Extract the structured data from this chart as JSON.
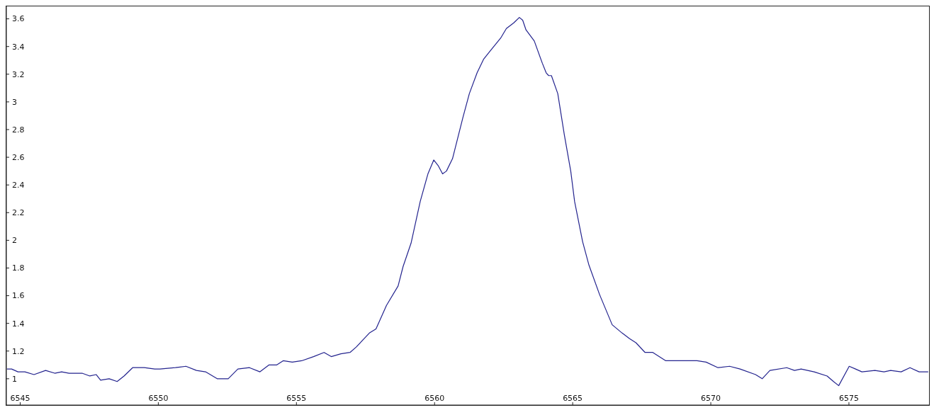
{
  "chart_data": {
    "type": "line",
    "xlim": [
      6544.5,
      6577.9
    ],
    "xticks": [
      6545,
      6550,
      6555,
      6560,
      6565,
      6570,
      6575
    ],
    "ylim": [
      0.81,
      3.69
    ],
    "yticks": [
      1,
      1.2,
      1.4,
      1.6,
      1.8,
      2,
      2.2,
      2.4,
      2.6,
      2.8,
      3,
      3.2,
      3.4,
      3.6
    ],
    "grid": false,
    "legend": false,
    "marker": "none",
    "line_style": "solid",
    "series": [
      {
        "color": "#23238e",
        "x": [
          6544.52,
          6544.69,
          6544.92,
          6545.17,
          6545.5,
          6545.92,
          6546.25,
          6546.5,
          6546.77,
          6547.24,
          6547.52,
          6547.75,
          6547.91,
          6548.22,
          6548.51,
          6548.76,
          6549.07,
          6549.49,
          6549.87,
          6550.06,
          6550.62,
          6551.0,
          6551.38,
          6551.71,
          6552.13,
          6552.53,
          6552.88,
          6553.3,
          6553.68,
          6554.01,
          6554.29,
          6554.52,
          6554.85,
          6555.19,
          6555.62,
          6556.0,
          6556.26,
          6556.61,
          6556.94,
          6557.17,
          6557.64,
          6557.88,
          6558.26,
          6558.68,
          6558.86,
          6559.15,
          6559.48,
          6559.76,
          6559.97,
          6560.13,
          6560.29,
          6560.43,
          6560.65,
          6561.03,
          6561.26,
          6561.54,
          6561.78,
          6562.02,
          6562.39,
          6562.6,
          6562.86,
          6563.07,
          6563.19,
          6563.31,
          6563.61,
          6563.9,
          6564.04,
          6564.13,
          6564.23,
          6564.46,
          6564.7,
          6564.93,
          6565.07,
          6565.36,
          6565.59,
          6565.97,
          6566.43,
          6566.79,
          6567.06,
          6567.29,
          6567.62,
          6567.9,
          6568.37,
          6568.7,
          6569.27,
          6569.5,
          6569.83,
          6570.26,
          6570.68,
          6571.06,
          6571.62,
          6571.86,
          6572.14,
          6572.75,
          6573.03,
          6573.27,
          6573.74,
          6574.21,
          6574.44,
          6574.63,
          6575.01,
          6575.24,
          6575.47,
          6575.94,
          6576.27,
          6576.51,
          6576.89,
          6577.21,
          6577.54,
          6577.87
        ],
        "values": [
          1.07,
          1.07,
          1.05,
          1.05,
          1.03,
          1.06,
          1.04,
          1.05,
          1.04,
          1.04,
          1.02,
          1.03,
          0.99,
          1.0,
          0.98,
          1.02,
          1.08,
          1.08,
          1.07,
          1.07,
          1.08,
          1.09,
          1.06,
          1.05,
          1.0,
          1.0,
          1.07,
          1.08,
          1.05,
          1.1,
          1.1,
          1.13,
          1.12,
          1.13,
          1.16,
          1.19,
          1.16,
          1.18,
          1.19,
          1.23,
          1.33,
          1.36,
          1.53,
          1.67,
          1.81,
          1.98,
          2.28,
          2.48,
          2.58,
          2.54,
          2.48,
          2.5,
          2.59,
          2.89,
          3.06,
          3.21,
          3.31,
          3.37,
          3.46,
          3.53,
          3.57,
          3.61,
          3.59,
          3.52,
          3.44,
          3.28,
          3.21,
          3.19,
          3.19,
          3.06,
          2.76,
          2.5,
          2.28,
          1.99,
          1.82,
          1.61,
          1.39,
          1.33,
          1.29,
          1.26,
          1.19,
          1.19,
          1.13,
          1.13,
          1.13,
          1.13,
          1.12,
          1.08,
          1.09,
          1.07,
          1.03,
          1.0,
          1.06,
          1.08,
          1.06,
          1.07,
          1.05,
          1.02,
          0.98,
          0.95,
          1.09,
          1.07,
          1.05,
          1.06,
          1.05,
          1.06,
          1.05,
          1.08,
          1.05,
          1.05
        ]
      }
    ]
  }
}
